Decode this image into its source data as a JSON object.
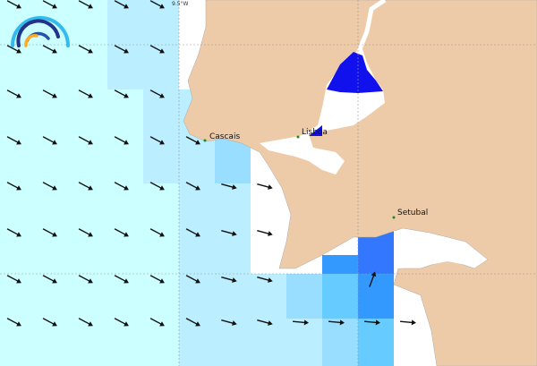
{
  "map": {
    "cities": [
      {
        "name": "Cascais"
      },
      {
        "name": "Lisboa"
      },
      {
        "name": "Setubal"
      }
    ],
    "graticule_label": "9.5°W",
    "colors": {
      "land": "#eecba8",
      "sea_base": "#ccffff",
      "level_1": "#bbeeff",
      "level_2": "#99ddff",
      "level_3": "#66ccff",
      "level_4": "#3399ff",
      "level_5": "#3377ff",
      "estuary": "#1111ee",
      "arrow": "#111111",
      "city_marker": "#228822"
    },
    "logo_icon": "rainbow-arc-logo",
    "arrow_icon": "current-direction-arrow"
  }
}
